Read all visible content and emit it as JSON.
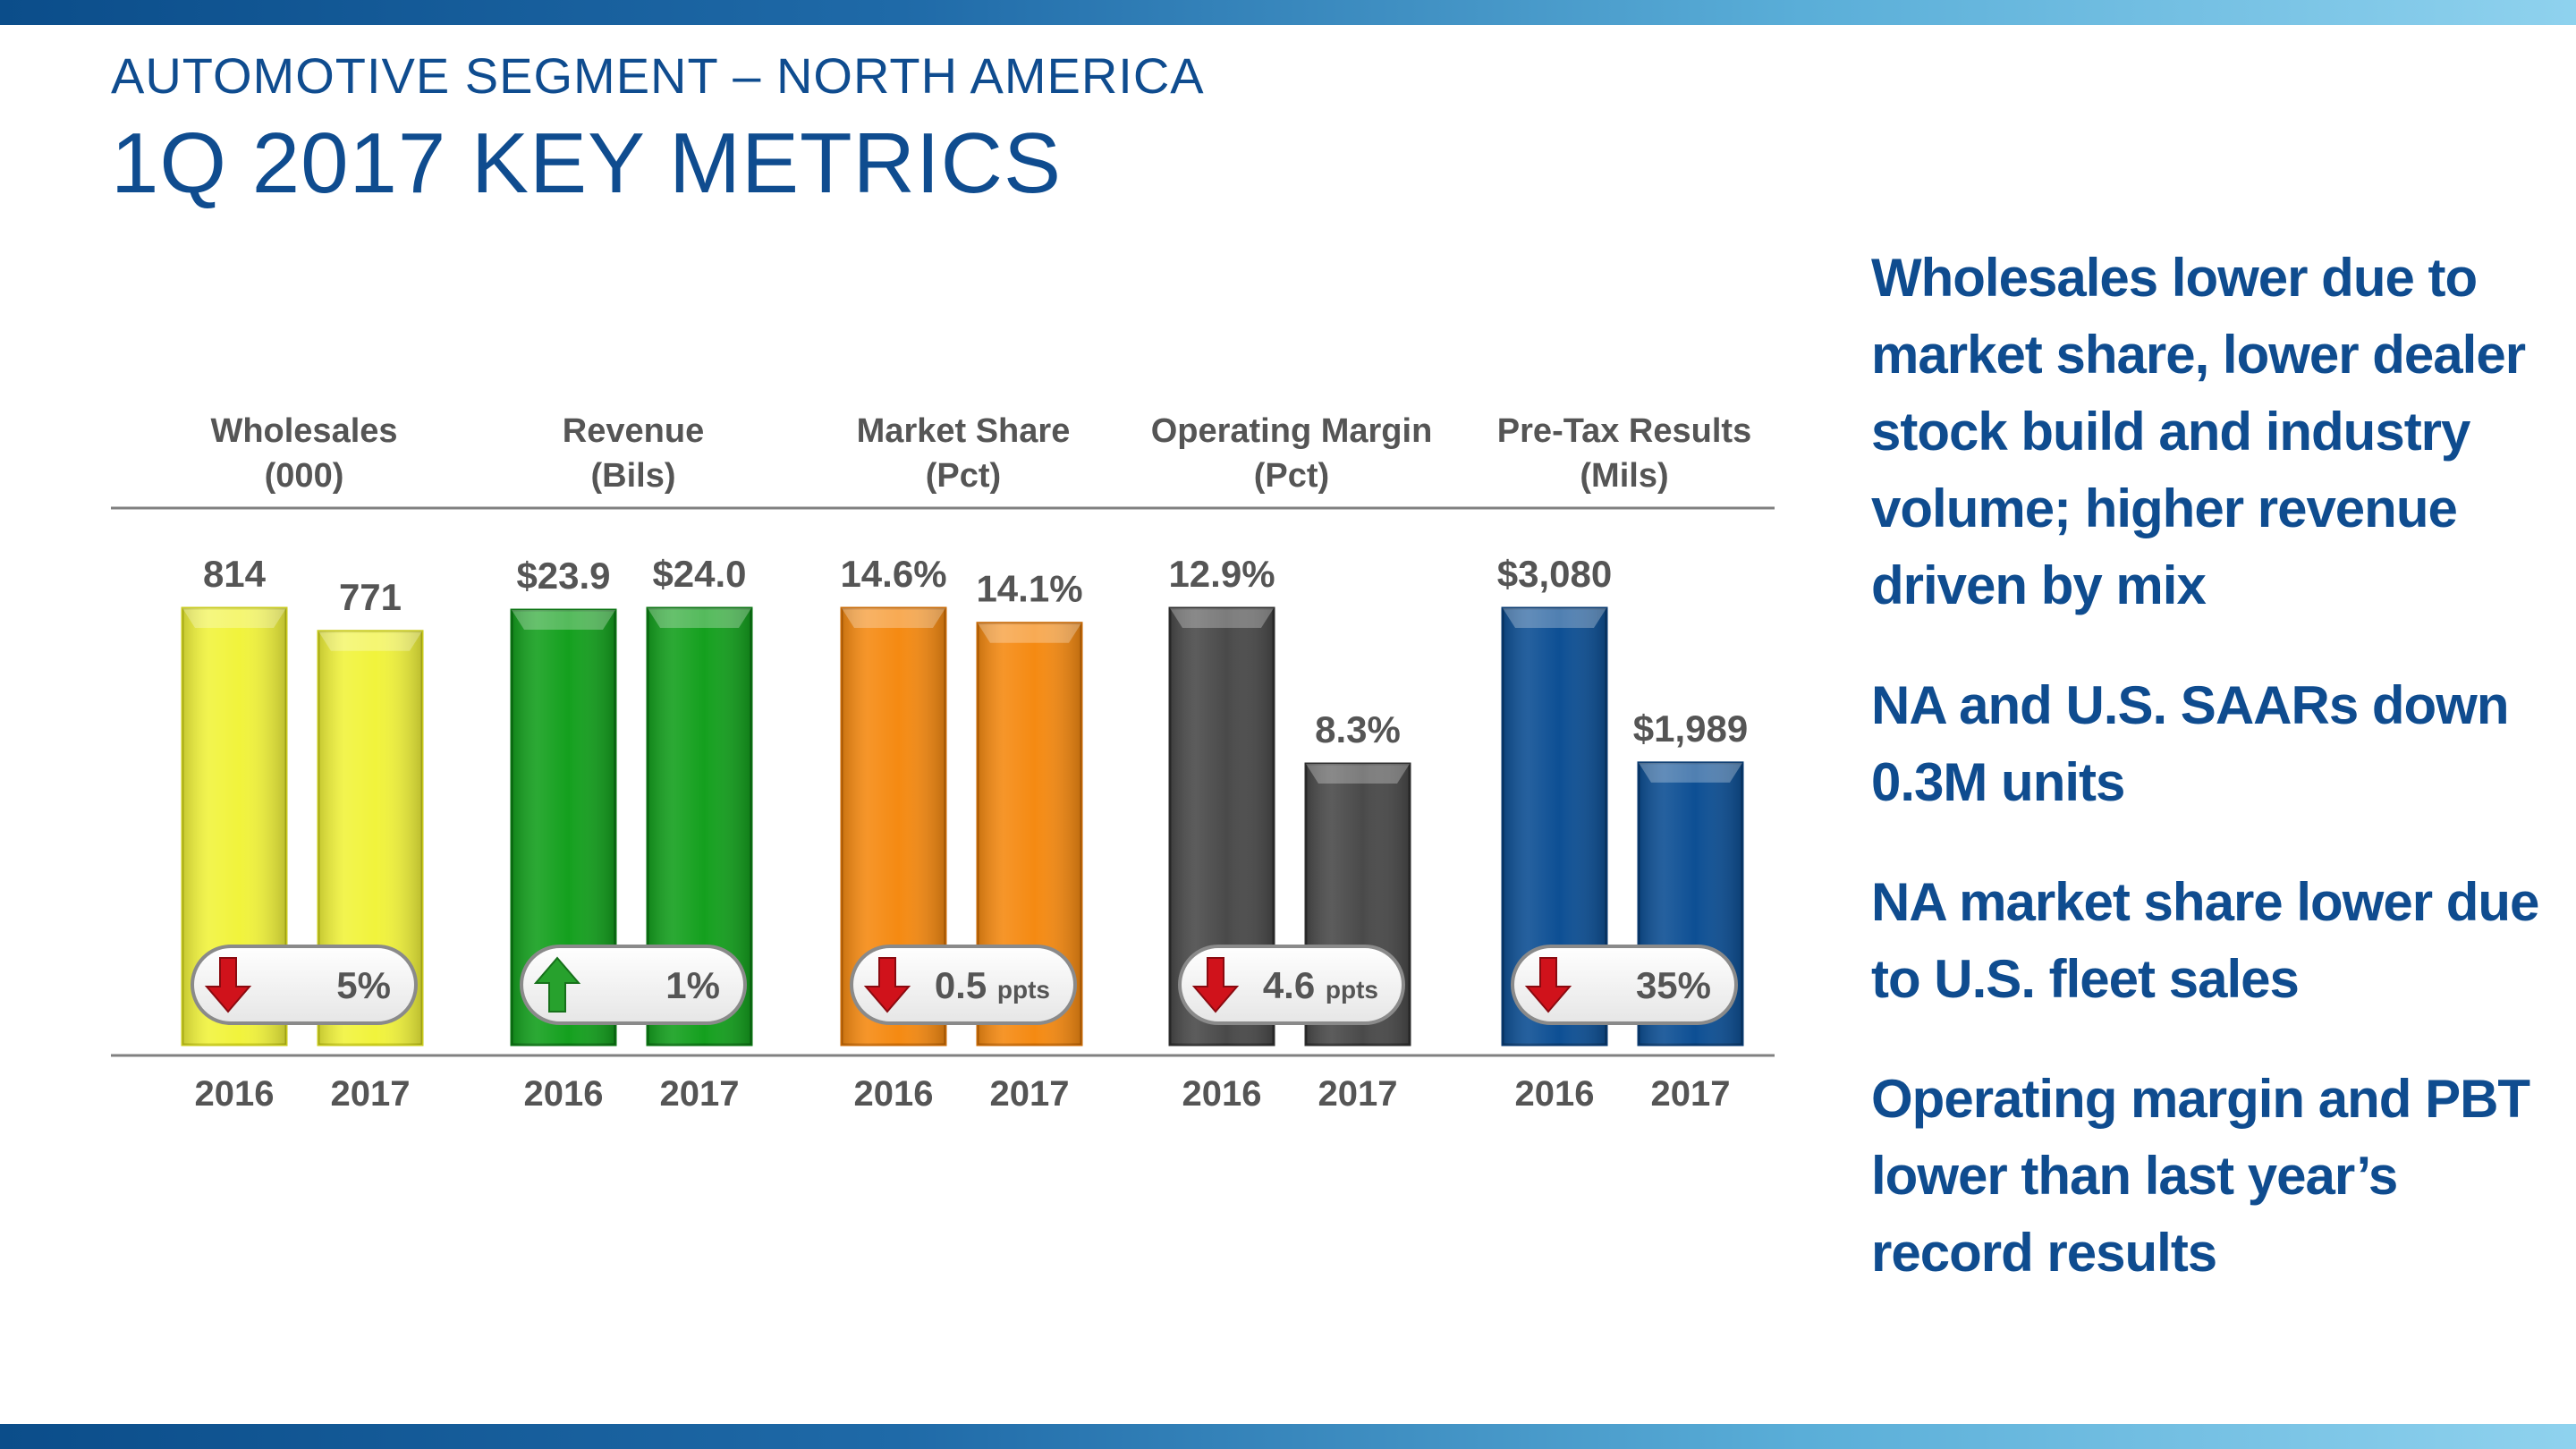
{
  "slide": {
    "subtitle": "AUTOMOTIVE SEGMENT – NORTH AMERICA",
    "title": "1Q 2017 KEY METRICS"
  },
  "bullets": [
    "Wholesales lower due to market share, lower dealer stock build and industry volume; higher revenue driven by mix",
    "NA and U.S. SAARs down 0.3M units",
    "NA market share lower due to U.S. fleet sales",
    "Operating margin and PBT lower than last year’s record results"
  ],
  "colors": {
    "title": "#0f4c8f",
    "axis": "#808080",
    "label": "#555555",
    "arrow_down": "#d0121b",
    "arrow_up": "#27a12d"
  },
  "chart_data": {
    "type": "bar",
    "categories": [
      "2016",
      "2017"
    ],
    "panels": [
      {
        "name": "Wholesales",
        "unit": "(000)",
        "color": "#f1f33c",
        "color_dark": "#c9cb1c",
        "values": [
          814,
          771
        ],
        "labels": [
          "814",
          "771"
        ],
        "change": {
          "direction": "down",
          "value": "5%",
          "suffix": ""
        }
      },
      {
        "name": "Revenue",
        "unit": "(Bils)",
        "color": "#14a01e",
        "color_dark": "#0b7413",
        "values": [
          23.9,
          24.0
        ],
        "labels": [
          "$23.9",
          "$24.0"
        ],
        "change": {
          "direction": "up",
          "value": "1%",
          "suffix": ""
        }
      },
      {
        "name": "Market Share",
        "unit": "(Pct)",
        "color": "#f58a12",
        "color_dark": "#c86a06",
        "values": [
          14.6,
          14.1
        ],
        "labels": [
          "14.6%",
          "14.1%"
        ],
        "change": {
          "direction": "down",
          "value": "0.5",
          "suffix": "ppts"
        }
      },
      {
        "name": "Operating Margin",
        "unit": "(Pct)",
        "color": "#4a4a4a",
        "color_dark": "#2e2e2e",
        "values": [
          12.9,
          8.3
        ],
        "labels": [
          "12.9%",
          "8.3%"
        ],
        "change": {
          "direction": "down",
          "value": "4.6",
          "suffix": "ppts"
        }
      },
      {
        "name": "Pre-Tax Results",
        "unit": "(Mils)",
        "color": "#0d4f94",
        "color_dark": "#083a70",
        "values": [
          3080,
          1989
        ],
        "labels": [
          "$3,080",
          "$1,989"
        ],
        "change": {
          "direction": "down",
          "value": "35%",
          "suffix": ""
        }
      }
    ]
  }
}
